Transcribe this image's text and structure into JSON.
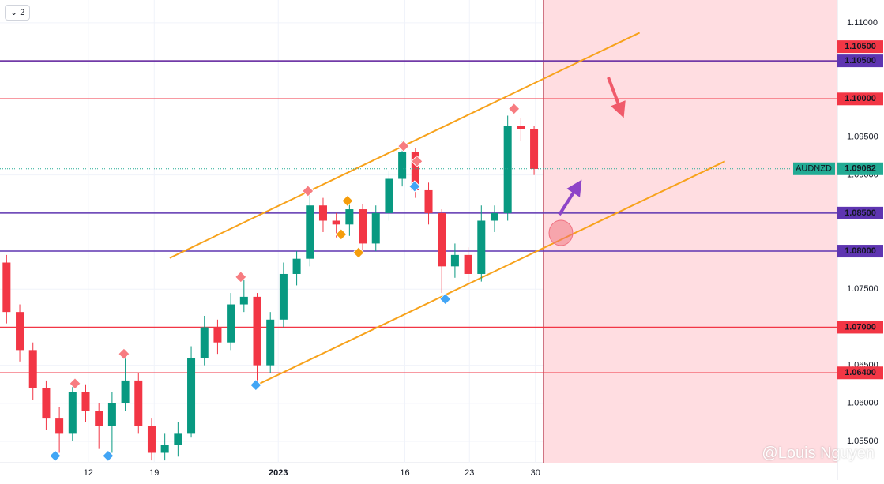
{
  "chart_data": {
    "type": "candlestick",
    "x": [
      0.5,
      1.5,
      2.5,
      3.5,
      4.5,
      5.5,
      6.5,
      7.5,
      8.5,
      9.5,
      10.5,
      11.5,
      12.5,
      13.5,
      14.5,
      15.5,
      16.5,
      17.5,
      18.5,
      19.5,
      20.5,
      21.5,
      22.5,
      23.5,
      24.5,
      25.5,
      26.5,
      27.5,
      28.5,
      29.5,
      30.5,
      31.5,
      32.5,
      33.5,
      34.5,
      35.5,
      36.5,
      37.5,
      38.5,
      39.5,
      40.5
    ],
    "open": [
      1.0785,
      1.072,
      1.067,
      1.062,
      1.058,
      1.056,
      1.0615,
      1.059,
      1.057,
      1.06,
      1.063,
      1.057,
      1.0535,
      1.0545,
      1.056,
      1.066,
      1.07,
      1.068,
      1.073,
      1.074,
      1.065,
      1.071,
      1.077,
      1.079,
      1.086,
      1.084,
      1.0835,
      1.0855,
      1.081,
      1.085,
      1.0895,
      1.093,
      1.088,
      1.085,
      1.078,
      1.0795,
      1.077,
      1.084,
      1.085,
      1.0965,
      1.096
    ],
    "high": [
      1.0795,
      1.073,
      1.068,
      1.063,
      1.0595,
      1.0628,
      1.0625,
      1.06,
      1.0615,
      1.0665,
      1.064,
      1.058,
      1.056,
      1.0575,
      1.0675,
      1.0715,
      1.071,
      1.0745,
      1.0765,
      1.0745,
      1.072,
      1.0785,
      1.08,
      1.0878,
      1.087,
      1.085,
      1.0866,
      1.0862,
      1.086,
      1.0905,
      1.0945,
      1.0935,
      1.089,
      1.0855,
      1.081,
      1.0805,
      1.086,
      1.086,
      1.0978,
      1.0975,
      1.0965
    ],
    "low": [
      1.0705,
      1.0655,
      1.0605,
      1.0565,
      1.0535,
      1.055,
      1.0575,
      1.054,
      1.0535,
      1.059,
      1.056,
      1.0525,
      1.0525,
      1.053,
      1.0555,
      1.065,
      1.0665,
      1.067,
      1.072,
      1.0625,
      1.064,
      1.07,
      1.0755,
      1.078,
      1.0825,
      1.0818,
      1.082,
      1.0795,
      1.08,
      1.084,
      1.0885,
      1.087,
      1.0835,
      1.0745,
      1.0765,
      1.0755,
      1.076,
      1.0825,
      1.084,
      1.0945,
      1.09
    ],
    "close": [
      1.072,
      1.067,
      1.062,
      1.058,
      1.056,
      1.0615,
      1.059,
      1.057,
      1.06,
      1.063,
      1.057,
      1.0535,
      1.0545,
      1.056,
      1.066,
      1.07,
      1.068,
      1.073,
      1.074,
      1.065,
      1.071,
      1.077,
      1.079,
      1.086,
      1.084,
      1.0835,
      1.0855,
      1.081,
      1.085,
      1.0895,
      1.093,
      1.088,
      1.085,
      1.078,
      1.0795,
      1.077,
      1.084,
      1.085,
      1.0965,
      1.096,
      1.0908
    ],
    "up_color": "#089981",
    "down_color": "#f23645",
    "xlim": [
      0,
      63.5
    ],
    "ylim": [
      1.0522,
      1.113
    ],
    "xticks": [
      {
        "value": 6.7,
        "label": "12"
      },
      {
        "value": 11.7,
        "label": "19"
      },
      {
        "value": 21.1,
        "label": "2023"
      },
      {
        "value": 30.7,
        "label": "16"
      },
      {
        "value": 35.6,
        "label": "23"
      },
      {
        "value": 40.6,
        "label": "30"
      }
    ],
    "yticks": [
      {
        "value": 1.055,
        "label": "1.05500"
      },
      {
        "value": 1.06,
        "label": "1.06000"
      },
      {
        "value": 1.065,
        "label": "1.06500"
      },
      {
        "value": 1.07,
        "label": "1.07000"
      },
      {
        "value": 1.075,
        "label": "1.07500"
      },
      {
        "value": 1.08,
        "label": "1.08000"
      },
      {
        "value": 1.085,
        "label": "1.08500"
      },
      {
        "value": 1.09,
        "label": "1.09000"
      },
      {
        "value": 1.095,
        "label": "1.09500"
      },
      {
        "value": 1.1,
        "label": "1.10000"
      },
      {
        "value": 1.105,
        "label": "1.10500"
      },
      {
        "value": 1.11,
        "label": "1.11000"
      }
    ],
    "grid": true,
    "levels": [
      {
        "value": 1.105,
        "label": "1.10500",
        "color": "#f23645"
      },
      {
        "value": 1.105,
        "label": "1.10500",
        "color": "#5e35b1"
      },
      {
        "value": 1.1,
        "label": "1.10000",
        "color": "#f23645"
      },
      {
        "value": 1.085,
        "label": "1.08500",
        "color": "#5e35b1"
      },
      {
        "value": 1.08,
        "label": "1.08000",
        "color": "#5e35b1"
      },
      {
        "value": 1.07,
        "label": "1.07000",
        "color": "#f23645"
      },
      {
        "value": 1.064,
        "label": "1.06400",
        "color": "#f23645"
      }
    ],
    "current_price": {
      "symbol": "AUDNZD",
      "value": 1.09082,
      "label": "1.09082",
      "color": "#22ab94"
    },
    "trendlines": [
      {
        "x": [
          12.87,
          48.5
        ],
        "y": [
          1.0791,
          1.1087
        ],
        "color": "#f7a21b"
      },
      {
        "x": [
          19.58,
          54.97
        ],
        "y": [
          1.0625,
          1.0918
        ],
        "color": "#f7a21b"
      }
    ],
    "markers": [
      {
        "x": 5.69,
        "y": 1.0626,
        "color": "#f77c80"
      },
      {
        "x": 9.4,
        "y": 1.0665,
        "color": "#f77c80"
      },
      {
        "x": 18.26,
        "y": 1.0766,
        "color": "#f77c80"
      },
      {
        "x": 23.35,
        "y": 1.0879,
        "color": "#f77c80"
      },
      {
        "x": 30.6,
        "y": 1.0938,
        "color": "#f77c80"
      },
      {
        "x": 31.62,
        "y": 1.0918,
        "color": "#f77c80"
      },
      {
        "x": 38.98,
        "y": 1.0987,
        "color": "#f77c80"
      },
      {
        "x": 4.19,
        "y": 1.0531,
        "color": "#42a5f5"
      },
      {
        "x": 8.2,
        "y": 1.0531,
        "color": "#42a5f5"
      },
      {
        "x": 19.4,
        "y": 1.0624,
        "color": "#42a5f5"
      },
      {
        "x": 31.44,
        "y": 1.0885,
        "color": "#42a5f5"
      },
      {
        "x": 33.77,
        "y": 1.0737,
        "color": "#42a5f5"
      },
      {
        "x": 26.35,
        "y": 1.0866,
        "color": "#f59d0b"
      },
      {
        "x": 25.87,
        "y": 1.0822,
        "color": "#f59d0b"
      },
      {
        "x": 27.19,
        "y": 1.0798,
        "color": "#f59d0b"
      }
    ],
    "forecast_zone": {
      "x_start": 41.2,
      "color": "#ffdde1"
    }
  },
  "ui": {
    "badge": "2",
    "watermark": "@Louis Nguyen"
  }
}
